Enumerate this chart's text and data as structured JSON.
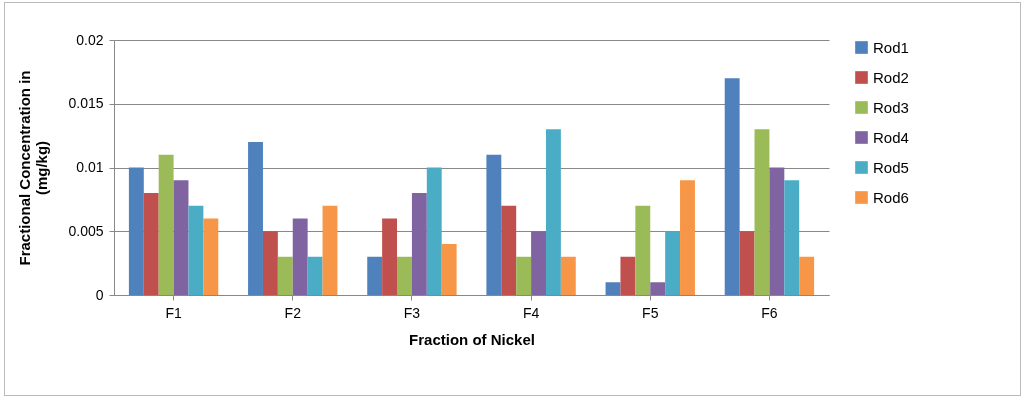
{
  "chart_data": {
    "type": "bar",
    "xlabel": "Fraction of Nickel",
    "ylabel": "Fractional Concentration in (mg/kg)",
    "categories": [
      "F1",
      "F2",
      "F3",
      "F4",
      "F5",
      "F6"
    ],
    "series": [
      {
        "name": "Rod1",
        "color": "#4f81bd",
        "values": [
          0.01,
          0.012,
          0.003,
          0.011,
          0.001,
          0.017
        ]
      },
      {
        "name": "Rod2",
        "color": "#c0504d",
        "values": [
          0.008,
          0.005,
          0.006,
          0.007,
          0.003,
          0.005
        ]
      },
      {
        "name": "Rod3",
        "color": "#9bbb59",
        "values": [
          0.011,
          0.003,
          0.003,
          0.003,
          0.007,
          0.013
        ]
      },
      {
        "name": "Rod4",
        "color": "#8064a2",
        "values": [
          0.009,
          0.006,
          0.008,
          0.005,
          0.001,
          0.01
        ]
      },
      {
        "name": "Rod5",
        "color": "#4bacc6",
        "values": [
          0.007,
          0.003,
          0.01,
          0.013,
          0.005,
          0.009
        ]
      },
      {
        "name": "Rod6",
        "color": "#f79646",
        "values": [
          0.006,
          0.007,
          0.004,
          0.003,
          0.009,
          0.003
        ]
      }
    ],
    "ylim": [
      0,
      0.02
    ],
    "yticks": [
      0,
      0.005,
      0.01,
      0.015,
      0.02
    ],
    "grid": "y",
    "legend": "right"
  }
}
